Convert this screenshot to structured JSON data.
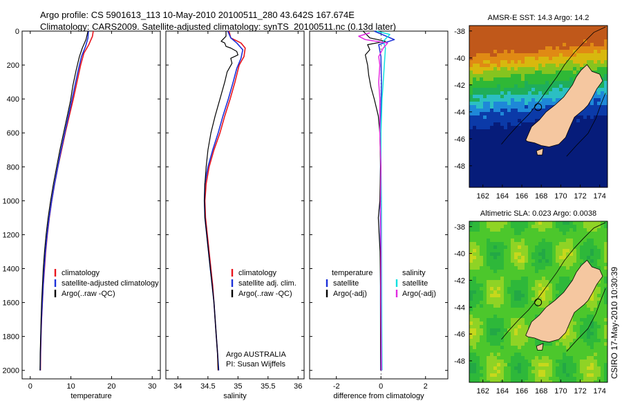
{
  "header": {
    "line1": "Argo profile: CS 5901613_113 10-May-2010 20100511_280 43.642S 167.674E",
    "line2": "Climatology: CARS2009. Satellite-adjusted climatology: synTS_20100511.nc (0.13d later)"
  },
  "side_label": "CSIRO 17-May-2010 10:30:39",
  "colors": {
    "red": "#e8131b",
    "blue": "#1b2fd8",
    "black": "#000000",
    "cyan": "#10e0e0",
    "magenta": "#e02ae0",
    "land": "#f5c7a0"
  },
  "chart_data": [
    {
      "type": "line",
      "id": "temperature",
      "xlabel": "temperature",
      "xlim": [
        -2,
        32
      ],
      "ylim": [
        2050,
        0
      ],
      "xticks": [
        "0",
        "10",
        "20",
        "30"
      ],
      "xtick_values": [
        0,
        10,
        20,
        30
      ],
      "yticks": [
        "0",
        "200",
        "400",
        "600",
        "800",
        "1000",
        "1200",
        "1400",
        "1600",
        "1800",
        "2000"
      ],
      "ytick_values": [
        0,
        200,
        400,
        600,
        800,
        1000,
        1200,
        1400,
        1600,
        1800,
        2000
      ],
      "legend": [
        "climatology",
        "satellite-adjusted climatology",
        "Argo(..raw -QC)"
      ],
      "series": [
        {
          "name": "climatology",
          "color": "red",
          "width": 1.6,
          "points": [
            [
              15.5,
              0
            ],
            [
              15.3,
              30
            ],
            [
              14.4,
              80
            ],
            [
              13.2,
              130
            ],
            [
              12.4,
              200
            ],
            [
              11.5,
              300
            ],
            [
              10.6,
              400
            ],
            [
              9.6,
              500
            ],
            [
              8.6,
              600
            ],
            [
              7.7,
              700
            ],
            [
              6.8,
              800
            ],
            [
              6.0,
              900
            ],
            [
              5.3,
              1000
            ],
            [
              4.7,
              1100
            ],
            [
              4.2,
              1200
            ],
            [
              3.8,
              1300
            ],
            [
              3.5,
              1400
            ],
            [
              3.2,
              1500
            ],
            [
              3.0,
              1600
            ],
            [
              2.8,
              1700
            ],
            [
              2.65,
              1800
            ],
            [
              2.55,
              1900
            ],
            [
              2.5,
              2000
            ]
          ]
        },
        {
          "name": "satellite-adjusted climatology",
          "color": "blue",
          "width": 1.6,
          "points": [
            [
              14.3,
              0
            ],
            [
              14.2,
              40
            ],
            [
              13.6,
              90
            ],
            [
              12.6,
              150
            ],
            [
              11.8,
              230
            ],
            [
              11.0,
              320
            ],
            [
              10.2,
              410
            ],
            [
              9.3,
              510
            ],
            [
              8.4,
              610
            ],
            [
              7.5,
              710
            ],
            [
              6.7,
              810
            ],
            [
              5.9,
              910
            ],
            [
              5.2,
              1010
            ],
            [
              4.6,
              1110
            ],
            [
              4.1,
              1210
            ],
            [
              3.7,
              1310
            ],
            [
              3.4,
              1410
            ],
            [
              3.15,
              1510
            ],
            [
              2.95,
              1610
            ],
            [
              2.75,
              1710
            ],
            [
              2.6,
              1810
            ],
            [
              2.5,
              1910
            ],
            [
              2.45,
              2000
            ]
          ]
        },
        {
          "name": "Argo(..raw -QC)",
          "color": "black",
          "width": 1.2,
          "points": [
            [
              14.2,
              0
            ],
            [
              13.7,
              50
            ],
            [
              12.8,
              100
            ],
            [
              12.1,
              150
            ],
            [
              11.3,
              230
            ],
            [
              10.5,
              320
            ],
            [
              9.9,
              410
            ],
            [
              9.1,
              500
            ],
            [
              8.2,
              600
            ],
            [
              7.3,
              700
            ],
            [
              6.5,
              800
            ],
            [
              5.7,
              900
            ],
            [
              5.0,
              1000
            ],
            [
              4.4,
              1100
            ],
            [
              3.9,
              1200
            ],
            [
              3.5,
              1300
            ],
            [
              3.2,
              1400
            ],
            [
              3.0,
              1500
            ],
            [
              2.8,
              1600
            ],
            [
              2.65,
              1700
            ],
            [
              2.55,
              1800
            ],
            [
              2.45,
              1900
            ],
            [
              2.4,
              2000
            ]
          ]
        }
      ]
    },
    {
      "type": "line",
      "id": "salinity",
      "xlabel": "salinity",
      "xlim": [
        33.8,
        36.1
      ],
      "ylim": [
        2050,
        0
      ],
      "xticks": [
        "34",
        "34.5",
        "35",
        "35.5",
        "36"
      ],
      "xtick_values": [
        34,
        34.5,
        35,
        35.5,
        36
      ],
      "legend": [
        "climatology",
        "satellite adj. clim.",
        "Argo(..raw -QC)"
      ],
      "annotation": [
        "Argo AUSTRALIA",
        "PI: Susan Wijffels"
      ],
      "series": [
        {
          "name": "climatology",
          "color": "red",
          "width": 1.6,
          "points": [
            [
              34.85,
              0
            ],
            [
              34.88,
              40
            ],
            [
              35.05,
              70
            ],
            [
              35.12,
              100
            ],
            [
              35.1,
              150
            ],
            [
              35.02,
              200
            ],
            [
              34.95,
              300
            ],
            [
              34.87,
              400
            ],
            [
              34.78,
              500
            ],
            [
              34.7,
              600
            ],
            [
              34.6,
              700
            ],
            [
              34.52,
              800
            ],
            [
              34.47,
              900
            ],
            [
              34.45,
              1000
            ],
            [
              34.46,
              1100
            ],
            [
              34.49,
              1200
            ],
            [
              34.52,
              1300
            ],
            [
              34.55,
              1400
            ],
            [
              34.58,
              1500
            ],
            [
              34.6,
              1600
            ],
            [
              34.62,
              1700
            ],
            [
              34.64,
              1800
            ],
            [
              34.66,
              1900
            ],
            [
              34.67,
              2000
            ]
          ]
        },
        {
          "name": "satellite adj. clim.",
          "color": "blue",
          "width": 1.6,
          "points": [
            [
              34.83,
              0
            ],
            [
              34.88,
              40
            ],
            [
              34.98,
              70
            ],
            [
              35.08,
              110
            ],
            [
              35.05,
              160
            ],
            [
              34.98,
              220
            ],
            [
              34.92,
              300
            ],
            [
              34.84,
              400
            ],
            [
              34.75,
              500
            ],
            [
              34.67,
              600
            ],
            [
              34.58,
              700
            ],
            [
              34.5,
              800
            ],
            [
              34.45,
              900
            ],
            [
              34.44,
              1000
            ],
            [
              34.45,
              1100
            ],
            [
              34.48,
              1200
            ],
            [
              34.51,
              1300
            ],
            [
              34.54,
              1400
            ],
            [
              34.57,
              1500
            ],
            [
              34.6,
              1600
            ],
            [
              34.62,
              1700
            ],
            [
              34.64,
              1800
            ],
            [
              34.66,
              1900
            ],
            [
              34.68,
              2000
            ]
          ]
        },
        {
          "name": "Argo(..raw -QC)",
          "color": "black",
          "width": 1.2,
          "points": [
            [
              34.8,
              0
            ],
            [
              34.8,
              30
            ],
            [
              34.72,
              60
            ],
            [
              34.78,
              70
            ],
            [
              34.8,
              90
            ],
            [
              34.88,
              100
            ],
            [
              34.98,
              120
            ],
            [
              35.0,
              140
            ],
            [
              34.88,
              160
            ],
            [
              34.9,
              190
            ],
            [
              34.82,
              240
            ],
            [
              34.78,
              300
            ],
            [
              34.7,
              400
            ],
            [
              34.62,
              500
            ],
            [
              34.55,
              600
            ],
            [
              34.5,
              700
            ],
            [
              34.47,
              800
            ],
            [
              34.45,
              900
            ],
            [
              34.44,
              1000
            ],
            [
              34.45,
              1100
            ],
            [
              34.48,
              1200
            ],
            [
              34.51,
              1300
            ],
            [
              34.54,
              1400
            ],
            [
              34.57,
              1500
            ],
            [
              34.6,
              1600
            ],
            [
              34.62,
              1700
            ],
            [
              34.64,
              1800
            ],
            [
              34.66,
              1900
            ],
            [
              34.67,
              2000
            ]
          ]
        }
      ]
    },
    {
      "type": "line",
      "id": "difference",
      "xlabel": "difference from climatology",
      "xlim": [
        -3.2,
        3.0
      ],
      "ylim": [
        2050,
        0
      ],
      "xticks": [
        "-2",
        "0",
        "2"
      ],
      "xtick_values": [
        -2,
        0,
        2
      ],
      "legend_headers": [
        "temperature",
        "salinity"
      ],
      "legend_left": [
        "satellite",
        "Argo(-adj)"
      ],
      "legend_right": [
        "satellite",
        "Argo(-adj)"
      ],
      "series": [
        {
          "name": "temperature satellite",
          "color": "blue",
          "width": 1.5,
          "points": [
            [
              -0.3,
              0
            ],
            [
              0.6,
              50
            ],
            [
              -0.1,
              80
            ],
            [
              0.0,
              150
            ],
            [
              0.02,
              300
            ],
            [
              0.0,
              500
            ],
            [
              -0.02,
              800
            ],
            [
              -0.03,
              1000
            ],
            [
              -0.02,
              1300
            ],
            [
              -0.02,
              1600
            ],
            [
              -0.01,
              2000
            ]
          ]
        },
        {
          "name": "temperature Argo(-adj)",
          "color": "black",
          "width": 1.2,
          "points": [
            [
              -0.8,
              0
            ],
            [
              -0.5,
              40
            ],
            [
              0.2,
              60
            ],
            [
              -0.6,
              80
            ],
            [
              -0.5,
              110
            ],
            [
              -0.7,
              140
            ],
            [
              -0.6,
              200
            ],
            [
              -0.55,
              260
            ],
            [
              -0.45,
              330
            ],
            [
              -0.3,
              400
            ],
            [
              -0.12,
              500
            ],
            [
              -0.05,
              600
            ],
            [
              -0.02,
              800
            ],
            [
              -0.05,
              1000
            ],
            [
              -0.12,
              1100
            ],
            [
              -0.08,
              1200
            ],
            [
              -0.04,
              1300
            ],
            [
              -0.02,
              1500
            ],
            [
              -0.02,
              1800
            ],
            [
              0.0,
              2000
            ]
          ]
        },
        {
          "name": "salinity satellite",
          "color": "cyan",
          "width": 1.5,
          "points": [
            [
              -0.2,
              0
            ],
            [
              0.4,
              20
            ],
            [
              0.1,
              60
            ],
            [
              0.2,
              100
            ],
            [
              0.15,
              200
            ],
            [
              0.1,
              300
            ],
            [
              0.05,
              400
            ],
            [
              0.0,
              600
            ],
            [
              0.0,
              800
            ],
            [
              0.02,
              1000
            ],
            [
              0.02,
              1300
            ],
            [
              0.03,
              1600
            ],
            [
              0.05,
              2000
            ]
          ]
        },
        {
          "name": "salinity Argo(-adj)",
          "color": "magenta",
          "width": 1.5,
          "points": [
            [
              -0.5,
              10
            ],
            [
              -1.0,
              30
            ],
            [
              -0.7,
              50
            ],
            [
              0.3,
              70
            ],
            [
              0.1,
              100
            ],
            [
              -0.1,
              150
            ],
            [
              -0.05,
              200
            ],
            [
              -0.1,
              300
            ],
            [
              -0.05,
              400
            ],
            [
              -0.05,
              600
            ],
            [
              0.0,
              800
            ],
            [
              -0.02,
              1000
            ],
            [
              0.0,
              1300
            ],
            [
              0.0,
              1600
            ],
            [
              0.02,
              2000
            ]
          ]
        }
      ]
    }
  ],
  "maps": [
    {
      "id": "sst",
      "title": "AMSR-E SST: 14.3 Argo: 14.2",
      "xticks": [
        "162",
        "164",
        "166",
        "168",
        "170",
        "172",
        "174"
      ],
      "xtick_values": [
        162,
        164,
        166,
        168,
        170,
        172,
        174
      ],
      "yticks": [
        "-38",
        "-40",
        "-42",
        "-44",
        "-46",
        "-48"
      ],
      "ytick_values": [
        -38,
        -40,
        -42,
        -44,
        -46,
        -48
      ],
      "lon": [
        160.6,
        174.8
      ],
      "lat": [
        -49.6,
        -37.6
      ],
      "float": [
        167.674,
        -43.642
      ]
    },
    {
      "id": "sla",
      "title": "Altimetric SLA: 0.023 Argo: 0.0038",
      "xticks": [
        "162",
        "164",
        "166",
        "168",
        "170",
        "172",
        "174"
      ],
      "xtick_values": [
        162,
        164,
        166,
        168,
        170,
        172,
        174
      ],
      "yticks": [
        "-38",
        "-40",
        "-42",
        "-44",
        "-46",
        "-48"
      ],
      "ytick_values": [
        -38,
        -40,
        -42,
        -44,
        -46,
        -48
      ],
      "lon": [
        160.6,
        174.8
      ],
      "lat": [
        -49.6,
        -37.6
      ],
      "float": [
        167.674,
        -43.642
      ]
    }
  ]
}
